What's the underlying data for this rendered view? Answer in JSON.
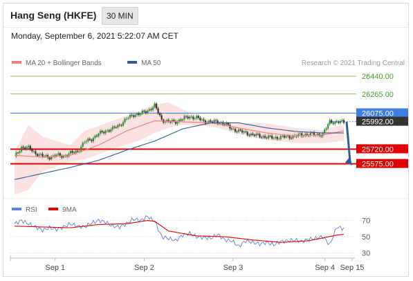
{
  "header": {
    "title": "Hang Seng (HKFE)",
    "timeframe": "30 MIN",
    "datetime": "Monday, September 6, 2021 5:22:07 AM CET"
  },
  "attribution": "Research © 2021 Trading Central",
  "colors": {
    "ma20": "#f08080",
    "ma50": "#2e5c99",
    "resistance": "#8cc06a",
    "pivot": "#3d7ee0",
    "support": "#e00000",
    "last_price": "#333333",
    "rsi": "#5b7fd6",
    "rsi_ma": "#e00000",
    "arrow": "#2e5c99"
  },
  "chart_data": [
    {
      "type": "candlestick",
      "legend": [
        {
          "name": "MA 20 + Bollinger Bands",
          "color": "#f08080"
        },
        {
          "name": "MA 50",
          "color": "#2e5c99"
        }
      ],
      "x_ticks": [
        "Sep 1",
        "Sep 2",
        "Sep 3",
        "Sep 4",
        "Sep 15"
      ],
      "ylim": [
        25190,
        26530
      ],
      "levels": [
        {
          "label": "26440.00",
          "value": 26440,
          "kind": "resistance"
        },
        {
          "label": "26265.00",
          "value": 26265,
          "kind": "resistance"
        },
        {
          "label": "26075.00",
          "value": 26075,
          "kind": "pivot"
        },
        {
          "label": "25992.00",
          "value": 25992,
          "kind": "last"
        },
        {
          "label": "25720.00",
          "value": 25720,
          "kind": "support"
        },
        {
          "label": "25575.00",
          "value": 25575,
          "kind": "support"
        }
      ],
      "close_path": [
        [
          0,
          25640
        ],
        [
          1,
          25740
        ],
        [
          2,
          25730
        ],
        [
          3,
          25680
        ],
        [
          4,
          25650
        ],
        [
          5,
          25640
        ],
        [
          6,
          25660
        ],
        [
          7,
          25650
        ],
        [
          8,
          25680
        ],
        [
          9,
          25700
        ],
        [
          10,
          25790
        ],
        [
          11,
          25820
        ],
        [
          12,
          25870
        ],
        [
          13,
          25900
        ],
        [
          14,
          25920
        ],
        [
          15,
          25960
        ],
        [
          16,
          26020
        ],
        [
          17,
          26060
        ],
        [
          18,
          26070
        ],
        [
          19,
          26100
        ],
        [
          20,
          26150
        ],
        [
          21,
          26010
        ],
        [
          22,
          25990
        ],
        [
          23,
          25990
        ],
        [
          24,
          26020
        ],
        [
          25,
          26040
        ],
        [
          26,
          26030
        ],
        [
          27,
          25995
        ],
        [
          28,
          25990
        ],
        [
          29,
          25990
        ],
        [
          30,
          25970
        ],
        [
          31,
          25920
        ],
        [
          32,
          25900
        ],
        [
          33,
          25880
        ],
        [
          34,
          25860
        ],
        [
          35,
          25850
        ],
        [
          36,
          25840
        ],
        [
          37,
          25830
        ],
        [
          38,
          25840
        ],
        [
          39,
          25840
        ],
        [
          40,
          25850
        ],
        [
          41,
          25860
        ],
        [
          42,
          25870
        ],
        [
          43,
          25860
        ],
        [
          44,
          25870
        ],
        [
          45,
          25990
        ],
        [
          46,
          25990
        ],
        [
          47,
          25985
        ]
      ],
      "ma50_path": [
        [
          0,
          25420
        ],
        [
          4,
          25480
        ],
        [
          8,
          25540
        ],
        [
          12,
          25610
        ],
        [
          16,
          25710
        ],
        [
          20,
          25800
        ],
        [
          24,
          25920
        ],
        [
          28,
          25980
        ],
        [
          32,
          25980
        ],
        [
          36,
          25930
        ],
        [
          40,
          25895
        ],
        [
          44,
          25880
        ],
        [
          47,
          25880
        ]
      ],
      "ma20_path": [
        [
          0,
          25660
        ],
        [
          4,
          25640
        ],
        [
          8,
          25660
        ],
        [
          12,
          25760
        ],
        [
          16,
          25900
        ],
        [
          20,
          26000
        ],
        [
          24,
          25990
        ],
        [
          28,
          25980
        ],
        [
          32,
          25930
        ],
        [
          36,
          25880
        ],
        [
          40,
          25850
        ],
        [
          44,
          25860
        ],
        [
          47,
          25900
        ]
      ],
      "bb_upper": [
        [
          0,
          25700
        ],
        [
          2,
          25960
        ],
        [
          4,
          25840
        ],
        [
          8,
          25760
        ],
        [
          10,
          25900
        ],
        [
          14,
          26000
        ],
        [
          18,
          26100
        ],
        [
          20,
          26160
        ],
        [
          22,
          26180
        ],
        [
          24,
          26110
        ],
        [
          28,
          26010
        ],
        [
          32,
          25975
        ],
        [
          36,
          25975
        ],
        [
          40,
          25930
        ],
        [
          44,
          25910
        ],
        [
          47,
          25960
        ]
      ],
      "bb_lower": [
        [
          0,
          25270
        ],
        [
          2,
          25320
        ],
        [
          4,
          25500
        ],
        [
          8,
          25600
        ],
        [
          10,
          25620
        ],
        [
          14,
          25720
        ],
        [
          18,
          25810
        ],
        [
          20,
          25880
        ],
        [
          22,
          25930
        ],
        [
          24,
          25960
        ],
        [
          28,
          25950
        ],
        [
          32,
          25870
        ],
        [
          36,
          25810
        ],
        [
          40,
          25780
        ],
        [
          44,
          25780
        ],
        [
          47,
          25800
        ]
      ]
    },
    {
      "type": "line",
      "legend": [
        {
          "name": "RSI",
          "color": "#5b7fd6"
        },
        {
          "name": "9MA",
          "color": "#e00000"
        }
      ],
      "y_ticks": [
        "70",
        "50",
        "30"
      ],
      "ylim": [
        15,
        85
      ],
      "rsi": [
        [
          0,
          66
        ],
        [
          1,
          70
        ],
        [
          2,
          66
        ],
        [
          3,
          62
        ],
        [
          4,
          58
        ],
        [
          5,
          61
        ],
        [
          6,
          59
        ],
        [
          7,
          62
        ],
        [
          8,
          66
        ],
        [
          9,
          63
        ],
        [
          10,
          62
        ],
        [
          11,
          67
        ],
        [
          12,
          70
        ],
        [
          13,
          68
        ],
        [
          14,
          63
        ],
        [
          15,
          62
        ],
        [
          16,
          66
        ],
        [
          17,
          72
        ],
        [
          18,
          70
        ],
        [
          19,
          75
        ],
        [
          20,
          69
        ],
        [
          21,
          50
        ],
        [
          22,
          48
        ],
        [
          23,
          45
        ],
        [
          24,
          52
        ],
        [
          25,
          54
        ],
        [
          26,
          50
        ],
        [
          27,
          49
        ],
        [
          28,
          48
        ],
        [
          29,
          53
        ],
        [
          30,
          46
        ],
        [
          31,
          45
        ],
        [
          32,
          38
        ],
        [
          33,
          45
        ],
        [
          34,
          43
        ],
        [
          35,
          41
        ],
        [
          36,
          43
        ],
        [
          37,
          40
        ],
        [
          38,
          44
        ],
        [
          39,
          45
        ],
        [
          40,
          46
        ],
        [
          41,
          44
        ],
        [
          42,
          47
        ],
        [
          43,
          48
        ],
        [
          44,
          50
        ],
        [
          45,
          40
        ],
        [
          46,
          62
        ],
        [
          47,
          60
        ]
      ],
      "rsi_ma": [
        [
          0,
          63
        ],
        [
          4,
          62
        ],
        [
          8,
          61
        ],
        [
          12,
          65
        ],
        [
          16,
          66
        ],
        [
          19,
          70
        ],
        [
          20,
          69
        ],
        [
          22,
          57
        ],
        [
          26,
          51
        ],
        [
          30,
          50
        ],
        [
          34,
          46
        ],
        [
          38,
          43
        ],
        [
          42,
          45
        ],
        [
          46,
          52
        ],
        [
          47,
          53
        ]
      ]
    }
  ]
}
